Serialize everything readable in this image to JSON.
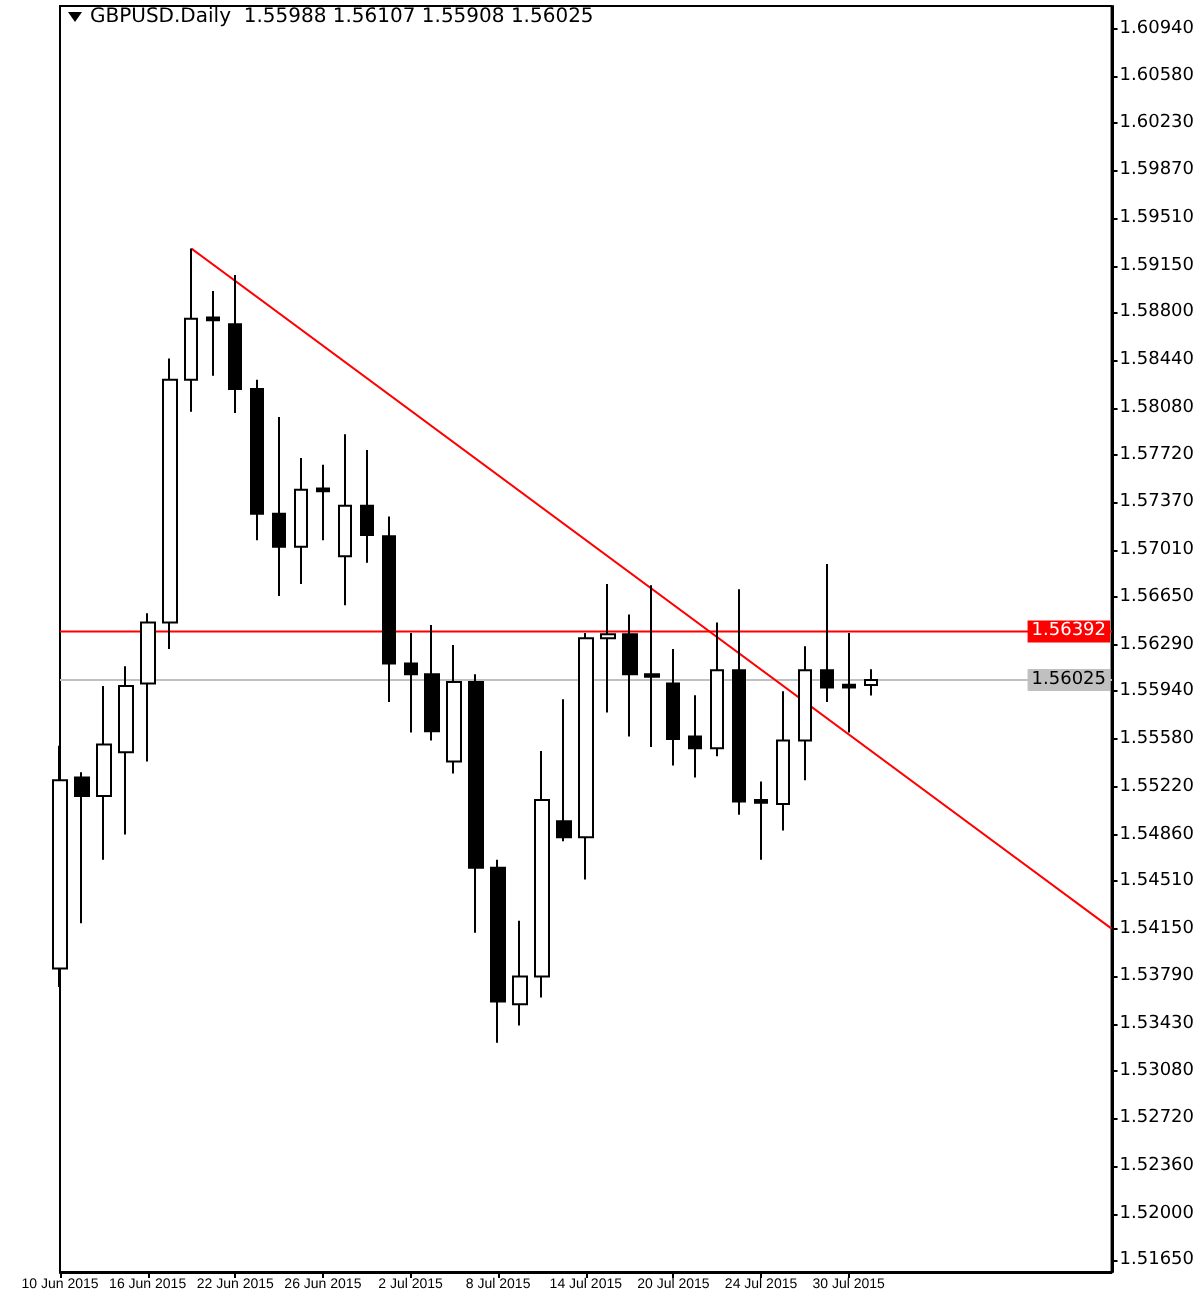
{
  "chart_data": {
    "type": "candlestick",
    "title": "GBPUSD.Daily  1.55988 1.56107 1.55908 1.56025",
    "categories": [
      "10 Jun 2015",
      null,
      null,
      null,
      "16 Jun 2015",
      null,
      null,
      null,
      "22 Jun 2015",
      null,
      null,
      null,
      "26 Jun 2015",
      null,
      null,
      null,
      "2 Jul 2015",
      null,
      null,
      null,
      "8 Jul 2015",
      null,
      null,
      null,
      "14 Jul 2015",
      null,
      null,
      null,
      "20 Jul 2015",
      null,
      null,
      null,
      "24 Jul 2015",
      null,
      null,
      null,
      "30 Jul 2015",
      null,
      null,
      null,
      null,
      null,
      null,
      null,
      null,
      null,
      null,
      null,
      null
    ],
    "color": "#000000",
    "ohlc": [
      [
        1.5385,
        1.5553,
        1.5371,
        1.5527
      ],
      [
        1.5529,
        1.5533,
        1.5419,
        1.5515
      ],
      [
        1.5515,
        1.5598,
        1.5467,
        1.5554
      ],
      [
        1.5548,
        1.5613,
        1.5486,
        1.5598
      ],
      [
        1.56,
        1.5653,
        1.5541,
        1.5646
      ],
      [
        1.5646,
        1.5845,
        1.5626,
        1.5829
      ],
      [
        1.5829,
        1.5928,
        1.5805,
        1.5875
      ],
      [
        1.5876,
        1.5896,
        1.5832,
        1.5874
      ],
      [
        1.5871,
        1.5908,
        1.5804,
        1.5822
      ],
      [
        1.5822,
        1.5829,
        1.5708,
        1.5728
      ],
      [
        1.5728,
        1.5801,
        1.5666,
        1.5703
      ],
      [
        1.5703,
        1.577,
        1.5675,
        1.5746
      ],
      [
        1.5747,
        1.5765,
        1.5708,
        1.5745
      ],
      [
        1.5696,
        1.5788,
        1.5659,
        1.5734
      ],
      [
        1.5734,
        1.5776,
        1.5691,
        1.5712
      ],
      [
        1.5711,
        1.5726,
        1.5586,
        1.5615
      ],
      [
        1.5615,
        1.5638,
        1.5563,
        1.5607
      ],
      [
        1.5607,
        1.5644,
        1.5557,
        1.5564
      ],
      [
        1.5541,
        1.5629,
        1.5532,
        1.5601
      ],
      [
        1.5601,
        1.5607,
        1.5412,
        1.5461
      ],
      [
        1.5461,
        1.5467,
        1.5329,
        1.536
      ],
      [
        1.5358,
        1.5421,
        1.5342,
        1.5379
      ],
      [
        1.5379,
        1.5549,
        1.5363,
        1.5512
      ],
      [
        1.5496,
        1.5588,
        1.5481,
        1.5484
      ],
      [
        1.5484,
        1.5638,
        1.5452,
        1.5634
      ],
      [
        1.5634,
        1.5675,
        1.5578,
        1.5637
      ],
      [
        1.5637,
        1.5652,
        1.556,
        1.5607
      ],
      [
        1.5607,
        1.5674,
        1.5552,
        1.5605
      ],
      [
        1.56,
        1.5626,
        1.5538,
        1.5558
      ],
      [
        1.556,
        1.5591,
        1.5529,
        1.5551
      ],
      [
        1.5551,
        1.5646,
        1.5545,
        1.561
      ],
      [
        1.561,
        1.5671,
        1.5501,
        1.5511
      ],
      [
        1.5512,
        1.5526,
        1.5467,
        1.551
      ],
      [
        1.5509,
        1.5594,
        1.5489,
        1.5557
      ],
      [
        1.5557,
        1.5628,
        1.5527,
        1.561
      ],
      [
        1.561,
        1.569,
        1.5586,
        1.5597
      ],
      [
        1.5599,
        1.5638,
        1.5563,
        1.5597
      ],
      [
        1.55988,
        1.56107,
        1.55908,
        1.56025
      ],
      null,
      null,
      null,
      null,
      null,
      null,
      null,
      null,
      null,
      null,
      null
    ],
    "series": [
      {
        "type": "line",
        "color": "#ff0000",
        "values": [
          null,
          null,
          null,
          null,
          null,
          null,
          1.5928,
          null,
          null,
          null,
          null,
          null,
          null,
          null,
          null,
          null,
          null,
          null,
          null,
          null,
          null,
          null,
          null,
          null,
          null,
          null,
          null,
          null,
          null,
          null,
          null,
          null,
          null,
          null,
          null,
          null,
          null,
          null,
          null,
          null,
          null,
          null,
          null,
          null,
          null,
          null,
          null,
          null,
          1.5415
        ]
      }
    ],
    "ylim": [
      1.5156,
      1.6111
    ],
    "yticks": [
      {
        "value": 1.6094,
        "label": "1.60940"
      },
      {
        "value": 1.6058,
        "label": "1.60580"
      },
      {
        "value": 1.6023,
        "label": "1.60230"
      },
      {
        "value": 1.5987,
        "label": "1.59870"
      },
      {
        "value": 1.5951,
        "label": "1.59510"
      },
      {
        "value": 1.5915,
        "label": "1.59150"
      },
      {
        "value": 1.588,
        "label": "1.58800"
      },
      {
        "value": 1.5844,
        "label": "1.58440"
      },
      {
        "value": 1.5808,
        "label": "1.58080"
      },
      {
        "value": 1.5772,
        "label": "1.57720"
      },
      {
        "value": 1.5737,
        "label": "1.57370"
      },
      {
        "value": 1.5701,
        "label": "1.57010"
      },
      {
        "value": 1.5665,
        "label": "1.56650"
      },
      {
        "value": 1.5629,
        "label": "1.56290"
      },
      {
        "value": 1.5594,
        "label": "1.55940"
      },
      {
        "value": 1.5558,
        "label": "1.55580"
      },
      {
        "value": 1.5522,
        "label": "1.55220"
      },
      {
        "value": 1.5486,
        "label": "1.54860"
      },
      {
        "value": 1.5451,
        "label": "1.54510"
      },
      {
        "value": 1.5415,
        "label": "1.54150"
      },
      {
        "value": 1.5379,
        "label": "1.53790"
      },
      {
        "value": 1.5343,
        "label": "1.53430"
      },
      {
        "value": 1.5308,
        "label": "1.53080"
      },
      {
        "value": 1.5272,
        "label": "1.52720"
      },
      {
        "value": 1.5236,
        "label": "1.52360"
      },
      {
        "value": 1.52,
        "label": "1.52000"
      },
      {
        "value": 1.5165,
        "label": "1.51650"
      }
    ],
    "ref_lines": [
      {
        "axis": "y",
        "value": 1.56392,
        "label": "1.56392",
        "color": "#ff0000"
      },
      {
        "axis": "y",
        "value": 1.56025,
        "label": "1.56025",
        "color": "#c0c0c0"
      }
    ]
  }
}
